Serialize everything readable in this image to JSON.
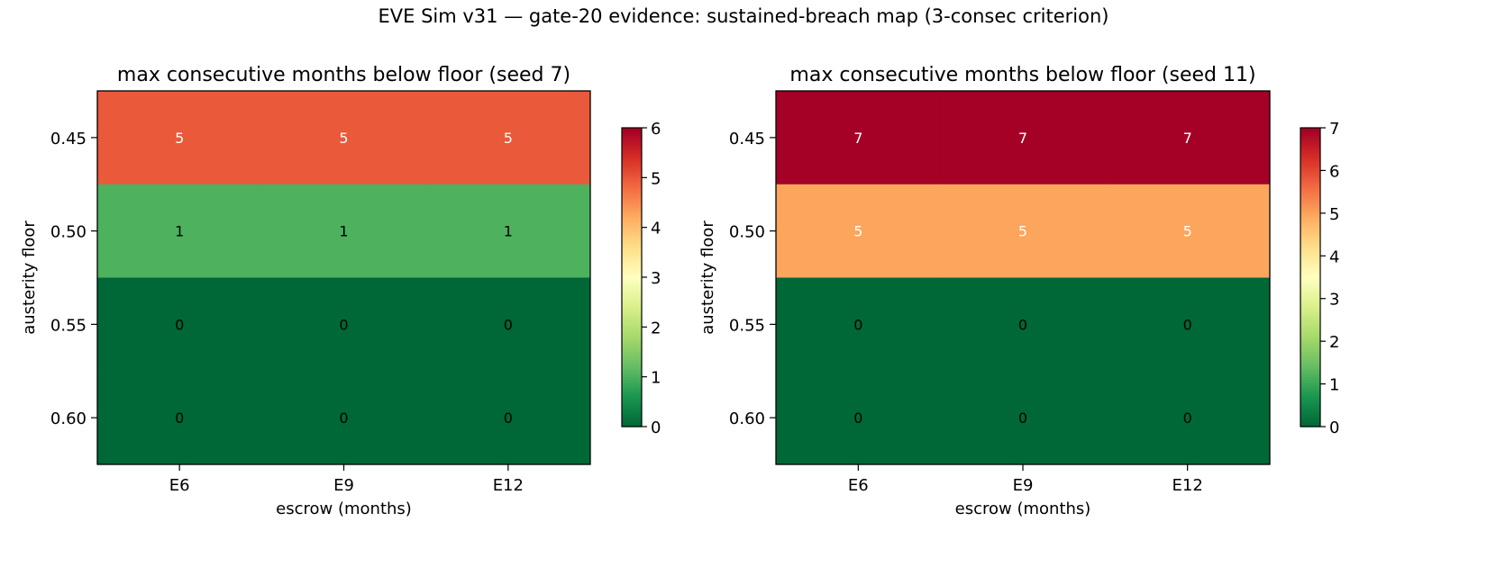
{
  "figure": {
    "suptitle": "EVE Sim v31 — gate-20 evidence: sustained-breach map (3-consec criterion)"
  },
  "chart_data": [
    {
      "type": "heatmap",
      "title": "max consecutive months below floor (seed 7)",
      "xlabel": "escrow (months)",
      "ylabel": "austerity floor",
      "x_categories": [
        "E6",
        "E9",
        "E12"
      ],
      "y_categories": [
        "0.45",
        "0.50",
        "0.55",
        "0.60"
      ],
      "values": [
        [
          5,
          5,
          5
        ],
        [
          1,
          1,
          1
        ],
        [
          0,
          0,
          0
        ],
        [
          0,
          0,
          0
        ]
      ],
      "colorbar": {
        "min": 0,
        "max": 6,
        "ticks": [
          "0",
          "1",
          "2",
          "3",
          "4",
          "5",
          "6"
        ],
        "colormap": "RdYlGn_r"
      }
    },
    {
      "type": "heatmap",
      "title": "max consecutive months below floor (seed 11)",
      "xlabel": "escrow (months)",
      "ylabel": "austerity floor",
      "x_categories": [
        "E6",
        "E9",
        "E12"
      ],
      "y_categories": [
        "0.45",
        "0.50",
        "0.55",
        "0.60"
      ],
      "values": [
        [
          7,
          7,
          7
        ],
        [
          5,
          5,
          5
        ],
        [
          0,
          0,
          0
        ],
        [
          0,
          0,
          0
        ]
      ],
      "colorbar": {
        "min": 0,
        "max": 7,
        "ticks": [
          "0",
          "1",
          "2",
          "3",
          "4",
          "5",
          "6",
          "7"
        ],
        "colormap": "RdYlGn_r"
      }
    }
  ]
}
